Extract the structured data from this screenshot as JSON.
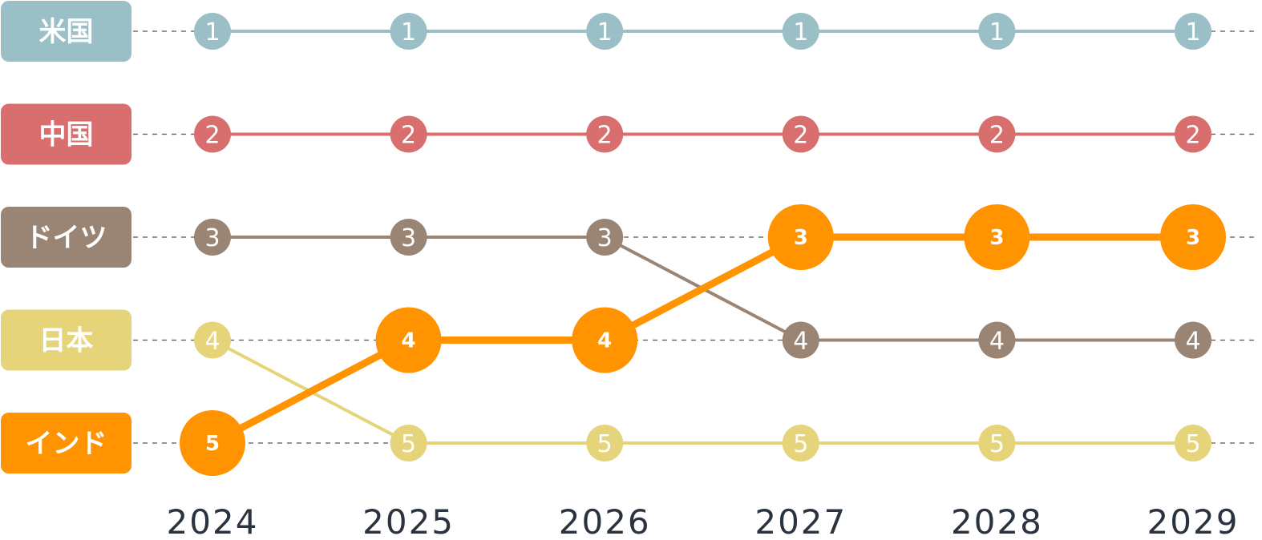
{
  "chart_data": {
    "type": "bump",
    "x": [
      "2024",
      "2025",
      "2026",
      "2027",
      "2028",
      "2029"
    ],
    "rank_range": [
      1,
      5
    ],
    "grid": true,
    "highlight_series": "インド",
    "series": [
      {
        "name": "米国",
        "color": "#9ABFC6",
        "ranks": [
          1,
          1,
          1,
          1,
          1,
          1
        ]
      },
      {
        "name": "中国",
        "color": "#D96E6E",
        "ranks": [
          2,
          2,
          2,
          2,
          2,
          2
        ]
      },
      {
        "name": "ドイツ",
        "color": "#9A8473",
        "ranks": [
          3,
          3,
          3,
          4,
          4,
          4
        ]
      },
      {
        "name": "日本",
        "color": "#E6D47A",
        "ranks": [
          4,
          5,
          5,
          5,
          5,
          5
        ]
      },
      {
        "name": "インド",
        "color": "#FF9300",
        "ranks": [
          5,
          4,
          4,
          3,
          3,
          3
        ]
      }
    ]
  },
  "colors": {
    "gridline": "#555555",
    "year_text": "#2B3340",
    "label_text": "#ffffff"
  }
}
